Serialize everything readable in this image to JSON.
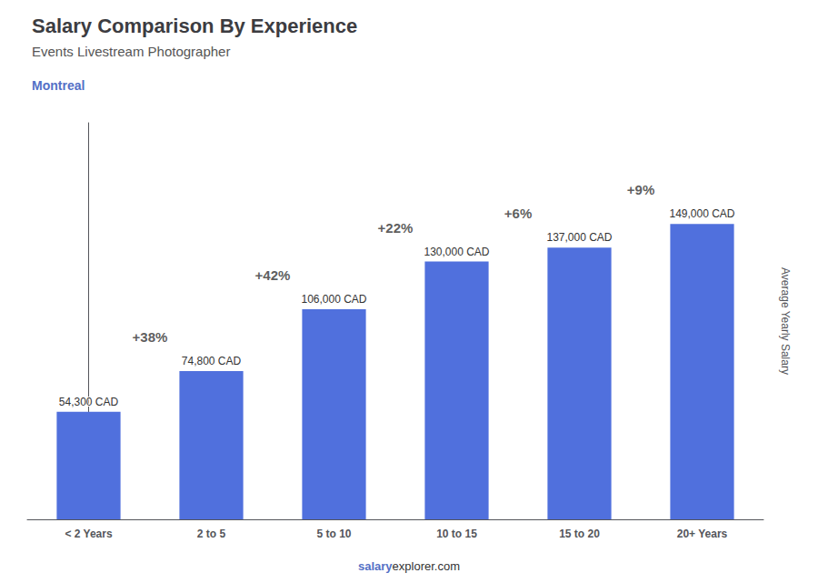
{
  "chart_data": {
    "type": "bar",
    "title": "Salary Comparison By Experience",
    "subtitle": "Events Livestream Photographer",
    "city": "Montreal",
    "ylabel": "Average Yearly Salary",
    "categories": [
      "< 2 Years",
      "2 to 5",
      "5 to 10",
      "10 to 15",
      "15 to 20",
      "20+ Years"
    ],
    "values": [
      54300,
      74800,
      106000,
      130000,
      137000,
      149000
    ],
    "value_labels": [
      "54,300 CAD",
      "74,800 CAD",
      "106,000 CAD",
      "130,000 CAD",
      "137,000 CAD",
      "149,000 CAD"
    ],
    "data_labels": true,
    "annotations": [
      "+38%",
      "+42%",
      "+22%",
      "+6%",
      "+9%"
    ],
    "footer": [
      "salary",
      "explorer.com"
    ],
    "ylim": [
      0,
      200000
    ],
    "grid": false,
    "tick_labels": "x"
  }
}
